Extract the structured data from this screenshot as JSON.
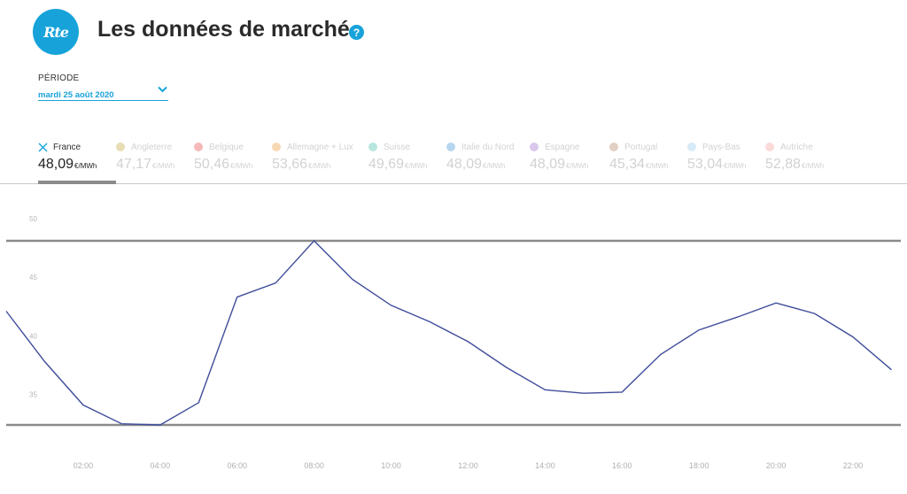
{
  "header": {
    "logo_text": "Rte",
    "title": "Les données de marché",
    "help_symbol": "?"
  },
  "period": {
    "label": "PÉRIODE",
    "value": "mardi 25 août 2020"
  },
  "colors": {
    "accent": "#17a3da",
    "series": "#3f4d9a",
    "limit_lines": "#8a8a8a"
  },
  "countries": [
    {
      "name": "France",
      "value": "48,09",
      "unit": "€/MWh",
      "active": true,
      "icon": "x-icon"
    },
    {
      "name": "Angleterre",
      "value": "47,17",
      "unit": "€/MWh",
      "active": false,
      "color": "#e8dcb4"
    },
    {
      "name": "Belgique",
      "value": "50,46",
      "unit": "€/MWh",
      "active": false,
      "color": "#f5b9b9"
    },
    {
      "name": "Allemagne + Lux",
      "value": "53,66",
      "unit": "€/MWh",
      "active": false,
      "color": "#f8d8b4"
    },
    {
      "name": "Suisse",
      "value": "49,69",
      "unit": "€/MWh",
      "active": false,
      "color": "#b9e5df"
    },
    {
      "name": "Italie du Nord",
      "value": "48,09",
      "unit": "€/MWh",
      "active": false,
      "color": "#b7d6ee"
    },
    {
      "name": "Espagne",
      "value": "48,09",
      "unit": "€/MWh",
      "active": false,
      "color": "#dac8ec"
    },
    {
      "name": "Portugal",
      "value": "45,34",
      "unit": "€/MWh",
      "active": false,
      "color": "#e2cfc4"
    },
    {
      "name": "Pays-Bas",
      "value": "53,04",
      "unit": "€/MWh",
      "active": false,
      "color": "#d6eaf7"
    },
    {
      "name": "Autriche",
      "value": "52,88",
      "unit": "€/MWh",
      "active": false,
      "color": "#fbdada"
    }
  ],
  "chart_data": {
    "type": "line",
    "series": [
      {
        "x": [
          0,
          1,
          2,
          3,
          4,
          5,
          6,
          7,
          8,
          9,
          10,
          11,
          12,
          13,
          14,
          15,
          16,
          17,
          18,
          19,
          20,
          21,
          22,
          23
        ],
        "y": [
          42.1,
          37.8,
          34.1,
          32.5,
          32.4,
          34.3,
          43.3,
          44.5,
          48.1,
          44.8,
          42.6,
          41.2,
          39.5,
          37.3,
          35.4,
          35.1,
          35.2,
          38.4,
          40.5,
          41.6,
          42.8,
          41.9,
          39.9,
          37.1
        ]
      }
    ],
    "x_ticks": [
      "02:00",
      "04:00",
      "06:00",
      "08:00",
      "10:00",
      "12:00",
      "14:00",
      "16:00",
      "18:00",
      "20:00",
      "22:00"
    ],
    "x_tick_hours": [
      2,
      4,
      6,
      8,
      10,
      12,
      14,
      16,
      18,
      20,
      22
    ],
    "y_ticks": [
      "50",
      "45",
      "40",
      "35"
    ],
    "y_tick_values": [
      50,
      45,
      40,
      35
    ],
    "xlim": [
      0,
      23.15
    ],
    "ylim": [
      30.5,
      52.5
    ],
    "reference_lines": [
      48.1,
      32.4
    ],
    "grid": false,
    "legend": "none"
  }
}
